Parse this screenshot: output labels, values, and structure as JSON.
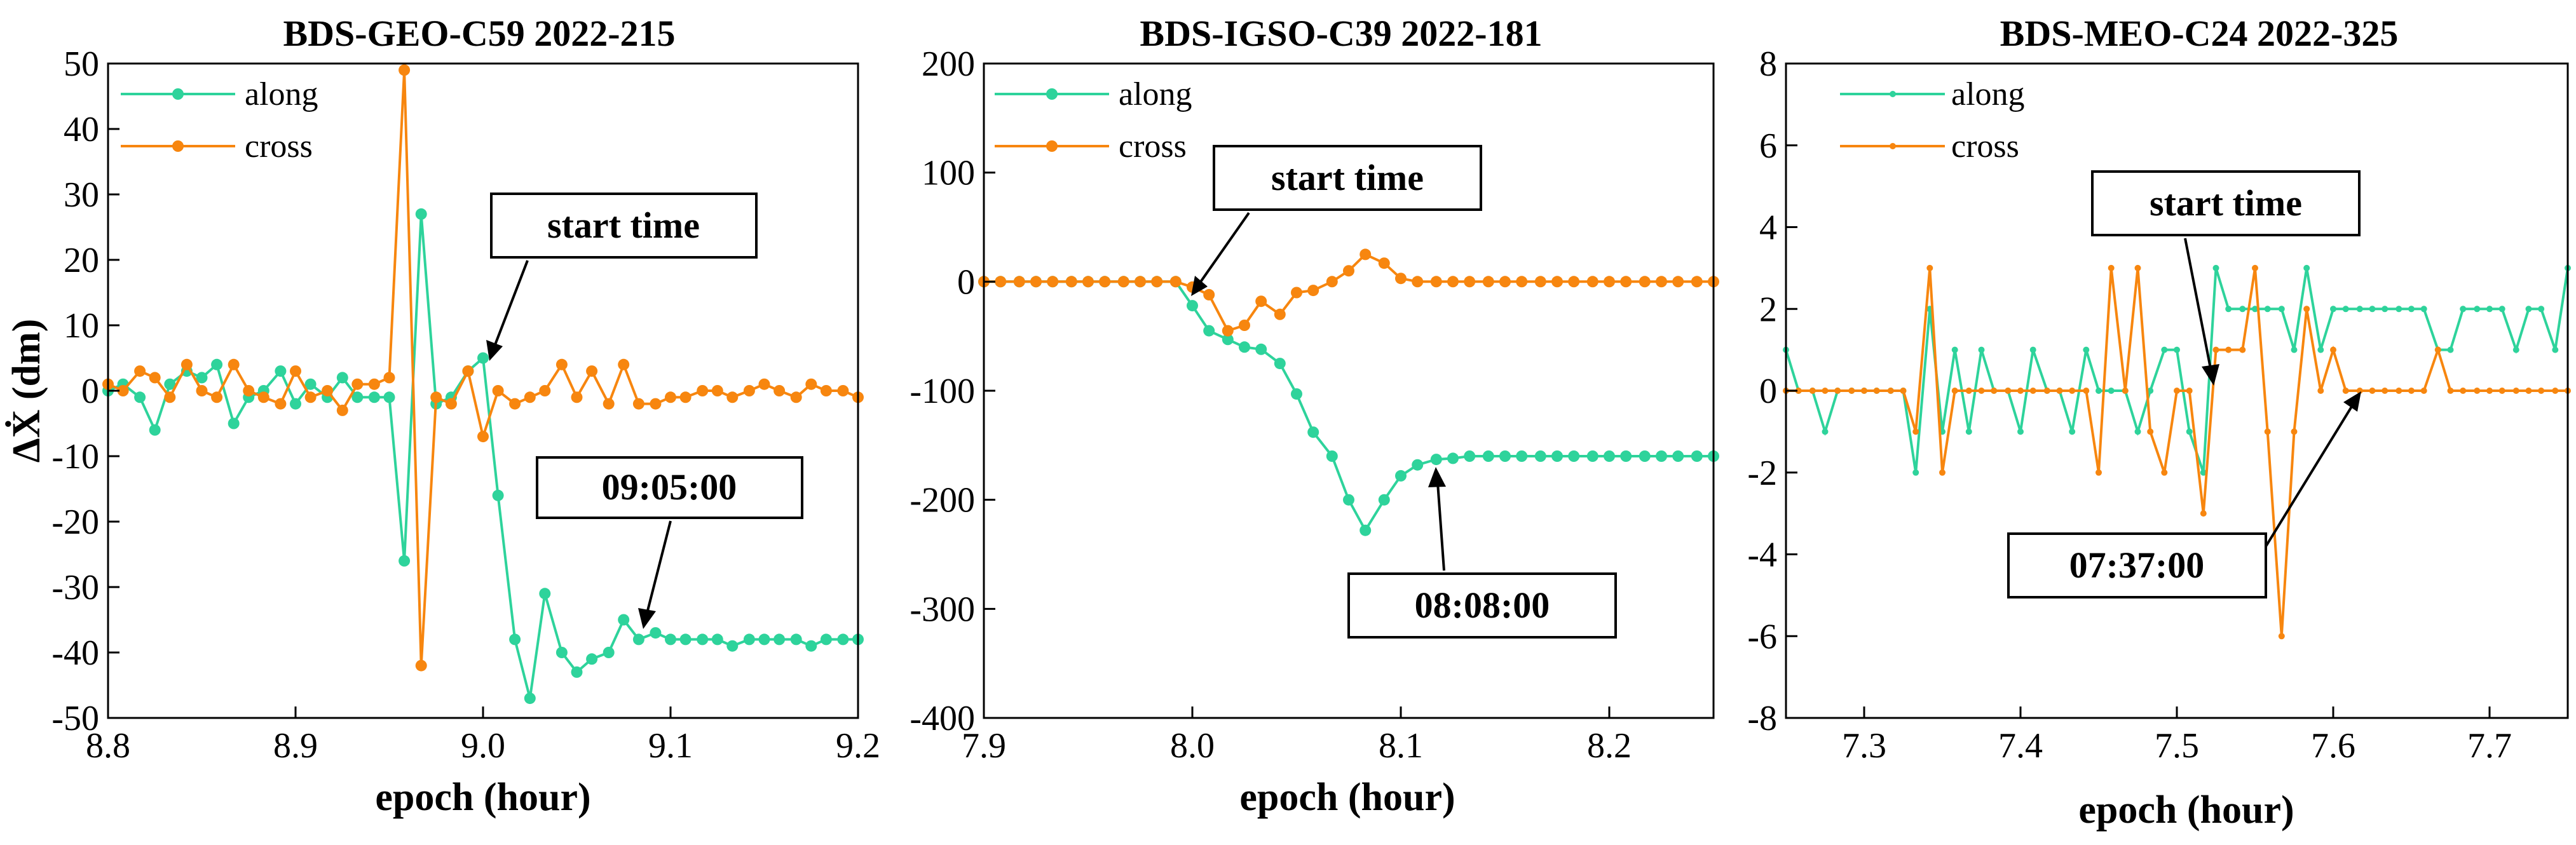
{
  "colors": {
    "along": "#2ed39b",
    "cross": "#f7860f"
  },
  "legend": [
    "along",
    "cross"
  ],
  "chart_data": [
    {
      "type": "line",
      "title": "BDS-GEO-C59   2022-215",
      "xlabel": "epoch (hour)",
      "ylabel": "ΔẊ (dm)",
      "xlim": [
        8.8,
        9.2
      ],
      "ylim": [
        -50,
        50
      ],
      "xticks": [
        8.8,
        8.9,
        9.0,
        9.1,
        9.2
      ],
      "xtick_labels": [
        "8.8",
        "8.9",
        "9.0",
        "9.1",
        "9.2"
      ],
      "yticks": [
        -50,
        -40,
        -30,
        -20,
        -10,
        0,
        10,
        20,
        30,
        40,
        50
      ],
      "ytick_labels": [
        "-50",
        "-40",
        "-30",
        "-20",
        "-10",
        "0",
        "10",
        "20",
        "30",
        "40",
        "50"
      ],
      "series": [
        {
          "name": "along",
          "x": [
            8.8,
            8.808,
            8.817,
            8.825,
            8.833,
            8.842,
            8.85,
            8.858,
            8.867,
            8.875,
            8.883,
            8.892,
            8.9,
            8.908,
            8.917,
            8.925,
            8.933,
            8.942,
            8.95,
            8.958,
            8.967,
            8.975,
            8.983,
            8.992,
            9.0,
            9.008,
            9.017,
            9.025,
            9.033,
            9.042,
            9.05,
            9.058,
            9.067,
            9.075,
            9.083,
            9.092,
            9.1,
            9.108,
            9.117,
            9.125,
            9.133,
            9.142,
            9.15,
            9.158,
            9.167,
            9.175,
            9.183,
            9.192,
            9.2
          ],
          "values": [
            0,
            1,
            -1,
            -6,
            1,
            3,
            2,
            4,
            -5,
            -1,
            0,
            3,
            -2,
            1,
            -1,
            2,
            -1,
            -1,
            -1,
            -26,
            27,
            -2,
            -1,
            3,
            5,
            -16,
            -38,
            -47,
            -31,
            -40,
            -43,
            -41,
            -40,
            -35,
            -38,
            -37,
            -38,
            -38,
            -38,
            -38,
            -39,
            -38,
            -38,
            -38,
            -38,
            -39,
            -38,
            -38,
            -38
          ]
        },
        {
          "name": "cross",
          "x": [
            8.8,
            8.808,
            8.817,
            8.825,
            8.833,
            8.842,
            8.85,
            8.858,
            8.867,
            8.875,
            8.883,
            8.892,
            8.9,
            8.908,
            8.917,
            8.925,
            8.933,
            8.942,
            8.95,
            8.958,
            8.967,
            8.975,
            8.983,
            8.992,
            9.0,
            9.008,
            9.017,
            9.025,
            9.033,
            9.042,
            9.05,
            9.058,
            9.067,
            9.075,
            9.083,
            9.092,
            9.1,
            9.108,
            9.117,
            9.125,
            9.133,
            9.142,
            9.15,
            9.158,
            9.167,
            9.175,
            9.183,
            9.192,
            9.2
          ],
          "values": [
            1,
            0,
            3,
            2,
            -1,
            4,
            0,
            -1,
            4,
            0,
            -1,
            -2,
            3,
            -1,
            0,
            -3,
            1,
            1,
            2,
            49,
            -42,
            -1,
            -2,
            3,
            -7,
            0,
            -2,
            -1,
            0,
            4,
            -1,
            3,
            -2,
            4,
            -2,
            -2,
            -1,
            -1,
            0,
            0,
            -1,
            0,
            1,
            0,
            -1,
            1,
            0,
            0,
            -1
          ]
        }
      ],
      "annotations": [
        "start time",
        "09:05:00"
      ]
    },
    {
      "type": "line",
      "title": "BDS-IGSO-C39   2022-181",
      "xlabel": "epoch (hour)",
      "ylabel": "",
      "xlim": [
        7.9,
        8.25
      ],
      "ylim": [
        -400,
        200
      ],
      "xticks": [
        7.9,
        8.0,
        8.1,
        8.2
      ],
      "xtick_labels": [
        "7.9",
        "8.0",
        "8.1",
        "8.2"
      ],
      "yticks": [
        -400,
        -300,
        -200,
        -100,
        0,
        100,
        200
      ],
      "ytick_labels": [
        "-400",
        "-300",
        "-200",
        "-100",
        "0",
        "100",
        "200"
      ],
      "series": [
        {
          "name": "along",
          "x": [
            7.9,
            7.908,
            7.917,
            7.925,
            7.933,
            7.942,
            7.95,
            7.958,
            7.967,
            7.975,
            7.983,
            7.992,
            8.0,
            8.008,
            8.017,
            8.025,
            8.033,
            8.042,
            8.05,
            8.058,
            8.067,
            8.075,
            8.083,
            8.092,
            8.1,
            8.108,
            8.117,
            8.125,
            8.133,
            8.142,
            8.15,
            8.158,
            8.167,
            8.175,
            8.183,
            8.192,
            8.2,
            8.208,
            8.217,
            8.225,
            8.233,
            8.242,
            8.25
          ],
          "values": [
            0,
            0,
            0,
            0,
            0,
            0,
            0,
            0,
            0,
            0,
            0,
            0,
            -22,
            -45,
            -53,
            -60,
            -62,
            -75,
            -103,
            -138,
            -160,
            -200,
            -228,
            -200,
            -178,
            -168,
            -163,
            -162,
            -160,
            -160,
            -160,
            -160,
            -160,
            -160,
            -160,
            -160,
            -160,
            -160,
            -160,
            -160,
            -160,
            -160,
            -160
          ]
        },
        {
          "name": "cross",
          "x": [
            7.9,
            7.908,
            7.917,
            7.925,
            7.933,
            7.942,
            7.95,
            7.958,
            7.967,
            7.975,
            7.983,
            7.992,
            8.0,
            8.008,
            8.017,
            8.025,
            8.033,
            8.042,
            8.05,
            8.058,
            8.067,
            8.075,
            8.083,
            8.092,
            8.1,
            8.108,
            8.117,
            8.125,
            8.133,
            8.142,
            8.15,
            8.158,
            8.167,
            8.175,
            8.183,
            8.192,
            8.2,
            8.208,
            8.217,
            8.225,
            8.233,
            8.242,
            8.25
          ],
          "values": [
            0,
            0,
            0,
            0,
            0,
            0,
            0,
            0,
            0,
            0,
            0,
            0,
            -5,
            -12,
            -45,
            -40,
            -18,
            -30,
            -10,
            -8,
            0,
            10,
            25,
            17,
            3,
            0,
            0,
            0,
            0,
            0,
            0,
            0,
            0,
            0,
            0,
            0,
            0,
            0,
            0,
            0,
            0,
            0,
            0
          ]
        }
      ],
      "annotations": [
        "start time",
        "08:08:00"
      ]
    },
    {
      "type": "line",
      "title": "BDS-MEO-C24   2022-325",
      "xlabel": "epoch (hour)",
      "ylabel": "",
      "xlim": [
        7.25,
        7.75
      ],
      "ylim": [
        -8,
        8
      ],
      "xticks": [
        7.3,
        7.4,
        7.5,
        7.6,
        7.7
      ],
      "xtick_labels": [
        "7.3",
        "7.4",
        "7.5",
        "7.6",
        "7.7"
      ],
      "yticks": [
        -8,
        -6,
        -4,
        -2,
        0,
        2,
        4,
        6,
        8
      ],
      "ytick_labels": [
        "-8",
        "-6",
        "-4",
        "-2",
        "0",
        "2",
        "4",
        "6",
        "8"
      ],
      "series": [
        {
          "name": "along",
          "x": [
            7.25,
            7.258,
            7.267,
            7.275,
            7.283,
            7.292,
            7.3,
            7.308,
            7.317,
            7.325,
            7.333,
            7.342,
            7.35,
            7.358,
            7.367,
            7.375,
            7.383,
            7.392,
            7.4,
            7.408,
            7.417,
            7.425,
            7.433,
            7.442,
            7.45,
            7.458,
            7.467,
            7.475,
            7.483,
            7.492,
            7.5,
            7.508,
            7.517,
            7.525,
            7.533,
            7.542,
            7.55,
            7.558,
            7.567,
            7.575,
            7.583,
            7.592,
            7.6,
            7.608,
            7.617,
            7.625,
            7.633,
            7.642,
            7.65,
            7.658,
            7.667,
            7.675,
            7.683,
            7.692,
            7.7,
            7.708,
            7.717,
            7.725,
            7.733,
            7.742,
            7.75
          ],
          "values": [
            1,
            0,
            0,
            -1,
            0,
            0,
            0,
            0,
            0,
            0,
            -2,
            2,
            -1,
            1,
            -1,
            1,
            0,
            0,
            -1,
            1,
            0,
            0,
            -1,
            1,
            0,
            0,
            0,
            -1,
            0,
            1,
            1,
            -1,
            -2,
            3,
            2,
            2,
            2,
            2,
            2,
            1,
            3,
            1,
            2,
            2,
            2,
            2,
            2,
            2,
            2,
            2,
            1,
            1,
            2,
            2,
            2,
            2,
            1,
            2,
            2,
            1,
            3
          ]
        },
        {
          "name": "cross",
          "x": [
            7.25,
            7.258,
            7.267,
            7.275,
            7.283,
            7.292,
            7.3,
            7.308,
            7.317,
            7.325,
            7.333,
            7.342,
            7.35,
            7.358,
            7.367,
            7.375,
            7.383,
            7.392,
            7.4,
            7.408,
            7.417,
            7.425,
            7.433,
            7.442,
            7.45,
            7.458,
            7.467,
            7.475,
            7.483,
            7.492,
            7.5,
            7.508,
            7.517,
            7.525,
            7.533,
            7.542,
            7.55,
            7.558,
            7.567,
            7.575,
            7.583,
            7.592,
            7.6,
            7.608,
            7.617,
            7.625,
            7.633,
            7.642,
            7.65,
            7.658,
            7.667,
            7.675,
            7.683,
            7.692,
            7.7,
            7.708,
            7.717,
            7.725,
            7.733,
            7.742,
            7.75
          ],
          "values": [
            0,
            0,
            0,
            0,
            0,
            0,
            0,
            0,
            0,
            0,
            -1,
            3,
            -2,
            0,
            0,
            0,
            0,
            0,
            0,
            0,
            0,
            0,
            0,
            0,
            -2,
            3,
            0,
            3,
            -1,
            -2,
            0,
            0,
            -3,
            1,
            1,
            1,
            3,
            -1,
            -6,
            -1,
            2,
            0,
            1,
            0,
            0,
            0,
            0,
            0,
            0,
            0,
            1,
            0,
            0,
            0,
            0,
            0,
            0,
            0,
            0,
            0,
            0
          ]
        }
      ],
      "annotations": [
        "start time",
        "07:37:00"
      ]
    }
  ]
}
